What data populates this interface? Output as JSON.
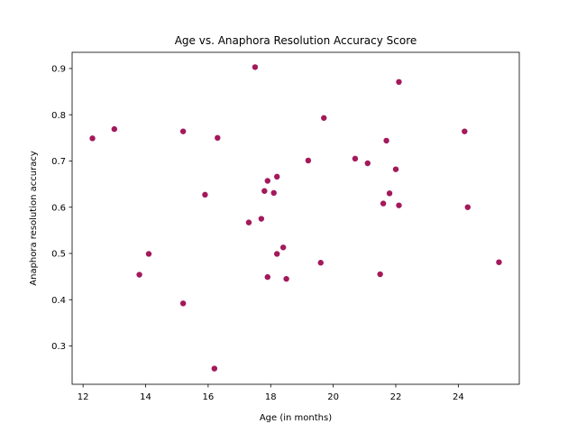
{
  "chart_data": {
    "type": "scatter",
    "title": "Age vs. Anaphora Resolution Accuracy Score",
    "xlabel": "Age (in months)",
    "ylabel": "Anaphora resolution accuracy",
    "xlim": [
      11.65,
      25.95
    ],
    "ylim": [
      0.217,
      0.935
    ],
    "xticks": [
      12,
      14,
      16,
      18,
      20,
      22,
      24
    ],
    "xtick_labels": [
      "12",
      "14",
      "16",
      "18",
      "20",
      "22",
      "24"
    ],
    "yticks": [
      0.3,
      0.4,
      0.5,
      0.6,
      0.7,
      0.8,
      0.9
    ],
    "ytick_labels": [
      "0.3",
      "0.4",
      "0.5",
      "0.6",
      "0.7",
      "0.8",
      "0.9"
    ],
    "grid": false,
    "legend": "none",
    "marker_color": "#a3195b",
    "series": [
      {
        "points": [
          {
            "x": 12.3,
            "y": 0.749
          },
          {
            "x": 13.0,
            "y": 0.769
          },
          {
            "x": 13.8,
            "y": 0.454
          },
          {
            "x": 14.1,
            "y": 0.499
          },
          {
            "x": 15.2,
            "y": 0.764
          },
          {
            "x": 15.2,
            "y": 0.392
          },
          {
            "x": 15.9,
            "y": 0.627
          },
          {
            "x": 16.2,
            "y": 0.251
          },
          {
            "x": 16.3,
            "y": 0.75
          },
          {
            "x": 17.3,
            "y": 0.567
          },
          {
            "x": 17.5,
            "y": 0.903
          },
          {
            "x": 17.7,
            "y": 0.575
          },
          {
            "x": 17.8,
            "y": 0.635
          },
          {
            "x": 17.9,
            "y": 0.657
          },
          {
            "x": 17.9,
            "y": 0.449
          },
          {
            "x": 18.1,
            "y": 0.631
          },
          {
            "x": 18.2,
            "y": 0.666
          },
          {
            "x": 18.2,
            "y": 0.499
          },
          {
            "x": 18.4,
            "y": 0.513
          },
          {
            "x": 18.5,
            "y": 0.445
          },
          {
            "x": 19.2,
            "y": 0.701
          },
          {
            "x": 19.6,
            "y": 0.48
          },
          {
            "x": 19.7,
            "y": 0.793
          },
          {
            "x": 20.7,
            "y": 0.705
          },
          {
            "x": 21.1,
            "y": 0.695
          },
          {
            "x": 21.5,
            "y": 0.455
          },
          {
            "x": 21.6,
            "y": 0.608
          },
          {
            "x": 21.7,
            "y": 0.744
          },
          {
            "x": 21.8,
            "y": 0.63
          },
          {
            "x": 22.0,
            "y": 0.682
          },
          {
            "x": 22.1,
            "y": 0.871
          },
          {
            "x": 22.1,
            "y": 0.604
          },
          {
            "x": 24.2,
            "y": 0.764
          },
          {
            "x": 24.3,
            "y": 0.6
          },
          {
            "x": 25.3,
            "y": 0.481
          }
        ]
      }
    ]
  }
}
